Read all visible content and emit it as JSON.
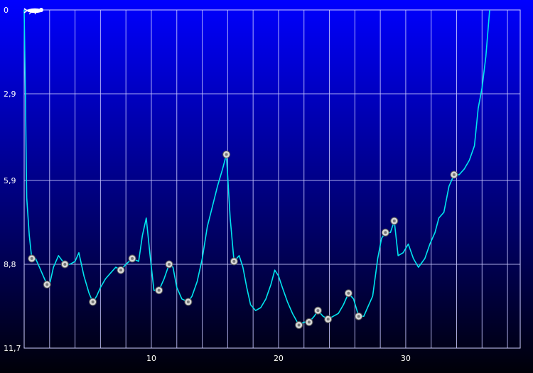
{
  "chart_data": {
    "type": "line",
    "title": "",
    "xlabel": "",
    "ylabel": "",
    "xlim": [
      0,
      39
    ],
    "ylim": [
      0,
      11.7
    ],
    "y_inverted": true,
    "grid": true,
    "x_ticks": [
      {
        "value": 10,
        "label": "10"
      },
      {
        "value": 20,
        "label": "20"
      },
      {
        "value": 30,
        "label": "30"
      }
    ],
    "y_ticks": [
      {
        "value": 0,
        "label": "0"
      },
      {
        "value": 2.9,
        "label": "2,9"
      },
      {
        "value": 5.9,
        "label": "5,9"
      },
      {
        "value": 8.8,
        "label": "8,8"
      },
      {
        "value": 11.7,
        "label": "11,7"
      }
    ],
    "colors": {
      "background_top": "#0000ff",
      "background_bottom": "#000008",
      "line": "#00e5ee",
      "highlight": "#ffff00",
      "grid": "#c8c8ff",
      "text": "#ffffff"
    },
    "series": [
      {
        "points": [
          [
            0.0,
            0.0
          ],
          [
            0.1,
            3.0
          ],
          [
            0.2,
            6.5
          ],
          [
            0.4,
            7.8
          ],
          [
            0.6,
            8.6
          ],
          [
            0.9,
            8.6
          ],
          [
            1.2,
            8.9
          ],
          [
            1.5,
            9.2
          ],
          [
            1.8,
            9.5
          ],
          [
            2.0,
            9.5
          ],
          [
            2.3,
            8.9
          ],
          [
            2.7,
            8.5
          ],
          [
            3.2,
            8.8
          ],
          [
            3.6,
            8.8
          ],
          [
            4.0,
            8.7
          ],
          [
            4.3,
            8.4
          ],
          [
            4.7,
            9.2
          ],
          [
            5.1,
            9.8
          ],
          [
            5.4,
            10.1
          ],
          [
            5.7,
            9.9
          ],
          [
            6.0,
            9.6
          ],
          [
            6.4,
            9.3
          ],
          [
            6.8,
            9.1
          ],
          [
            7.2,
            8.9
          ],
          [
            7.6,
            9.0
          ],
          [
            8.0,
            8.8
          ],
          [
            8.5,
            8.6
          ],
          [
            9.0,
            8.7
          ],
          [
            9.3,
            7.8
          ],
          [
            9.6,
            7.2
          ],
          [
            9.9,
            8.5
          ],
          [
            10.2,
            9.7
          ],
          [
            10.6,
            9.7
          ],
          [
            11.0,
            9.3
          ],
          [
            11.4,
            8.8
          ],
          [
            11.7,
            8.9
          ],
          [
            12.0,
            9.6
          ],
          [
            12.4,
            10.0
          ],
          [
            12.9,
            10.1
          ],
          [
            13.2,
            9.9
          ],
          [
            13.6,
            9.4
          ],
          [
            14.0,
            8.6
          ],
          [
            14.4,
            7.5
          ],
          [
            14.8,
            6.8
          ],
          [
            15.2,
            6.1
          ],
          [
            15.6,
            5.5
          ],
          [
            15.9,
            5.0
          ],
          [
            16.2,
            7.2
          ],
          [
            16.5,
            8.7
          ],
          [
            16.9,
            8.5
          ],
          [
            17.2,
            8.9
          ],
          [
            17.5,
            9.6
          ],
          [
            17.8,
            10.2
          ],
          [
            18.2,
            10.4
          ],
          [
            18.6,
            10.3
          ],
          [
            19.0,
            10.0
          ],
          [
            19.4,
            9.5
          ],
          [
            19.7,
            9.0
          ],
          [
            20.0,
            9.2
          ],
          [
            20.3,
            9.6
          ],
          [
            20.7,
            10.1
          ],
          [
            21.1,
            10.5
          ],
          [
            21.6,
            10.9
          ],
          [
            22.0,
            10.8
          ],
          [
            22.4,
            10.8
          ],
          [
            22.8,
            10.6
          ],
          [
            23.1,
            10.4
          ],
          [
            23.5,
            10.6
          ],
          [
            23.9,
            10.7
          ],
          [
            24.3,
            10.6
          ],
          [
            24.7,
            10.5
          ],
          [
            25.1,
            10.2
          ],
          [
            25.5,
            9.8
          ],
          [
            25.9,
            10.0
          ],
          [
            26.3,
            10.6
          ],
          [
            26.7,
            10.6
          ],
          [
            27.0,
            10.3
          ],
          [
            27.4,
            9.9
          ],
          [
            27.8,
            8.6
          ],
          [
            28.1,
            7.9
          ],
          [
            28.4,
            7.7
          ],
          [
            28.8,
            7.7
          ],
          [
            29.1,
            7.3
          ],
          [
            29.4,
            8.5
          ],
          [
            29.8,
            8.4
          ],
          [
            30.2,
            8.1
          ],
          [
            30.6,
            8.6
          ],
          [
            31.0,
            8.9
          ],
          [
            31.5,
            8.6
          ],
          [
            31.9,
            8.1
          ],
          [
            32.3,
            7.7
          ],
          [
            32.6,
            7.2
          ],
          [
            33.0,
            7.0
          ],
          [
            33.4,
            6.1
          ],
          [
            33.8,
            5.7
          ],
          [
            34.2,
            5.7
          ],
          [
            34.6,
            5.5
          ],
          [
            35.0,
            5.2
          ],
          [
            35.4,
            4.7
          ],
          [
            35.7,
            3.4
          ],
          [
            36.0,
            2.7
          ],
          [
            36.3,
            1.6
          ],
          [
            36.6,
            0.0
          ]
        ]
      }
    ]
  }
}
